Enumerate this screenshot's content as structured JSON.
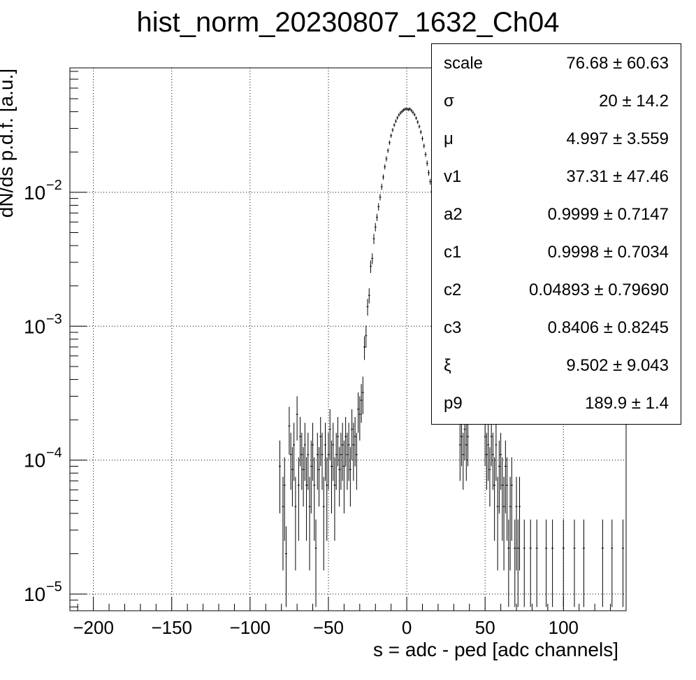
{
  "chart_data": {
    "type": "scatter",
    "title": "hist_norm_20230807_1632_Ch04",
    "xlabel": "s = adc - ped [adc channels]",
    "ylabel": "dN/ds p.d.f. [a.u.]",
    "xlim": [
      -215,
      140
    ],
    "ylim": [
      7.5e-06,
      0.085
    ],
    "yscale": "log",
    "grid": true,
    "x_ticks": [
      "−200",
      "−150",
      "−100",
      "−50",
      "0",
      "50",
      "100"
    ],
    "x_tick_values": [
      -200,
      -150,
      -100,
      -50,
      0,
      50,
      100
    ],
    "y_ticks": [
      {
        "base": "10",
        "exp": "−5",
        "value": 1e-05
      },
      {
        "base": "10",
        "exp": "−4",
        "value": 0.0001
      },
      {
        "base": "10",
        "exp": "−3",
        "value": 0.001
      },
      {
        "base": "10",
        "exp": "−2",
        "value": 0.01
      }
    ],
    "points": [
      {
        "x": -81,
        "y": 9e-05,
        "yerr": 5e-05
      },
      {
        "x": -79,
        "y": 4.5e-05,
        "yerr": 3e-05
      },
      {
        "x": -78,
        "y": 6.5e-05,
        "yerr": 4e-05
      },
      {
        "x": -77,
        "y": 2e-05,
        "yerr": 1.2e-05
      },
      {
        "x": -75,
        "y": 0.00018,
        "yerr": 7e-05
      },
      {
        "x": -74,
        "y": 0.00011,
        "yerr": 5e-05
      },
      {
        "x": -73,
        "y": 8.5e-05,
        "yerr": 4e-05
      },
      {
        "x": -72,
        "y": 0.00013,
        "yerr": 6e-05
      },
      {
        "x": -71,
        "y": 4.5e-05,
        "yerr": 3e-05
      },
      {
        "x": -70,
        "y": 0.00022,
        "yerr": 8e-05
      },
      {
        "x": -69,
        "y": 6.5e-05,
        "yerr": 4e-05
      },
      {
        "x": -68,
        "y": 0.00015,
        "yerr": 6e-05
      },
      {
        "x": -67,
        "y": 0.00011,
        "yerr": 5e-05
      },
      {
        "x": -66,
        "y": 8.5e-05,
        "yerr": 4e-05
      },
      {
        "x": -65,
        "y": 0.00013,
        "yerr": 6e-05
      },
      {
        "x": -64,
        "y": 6.5e-05,
        "yerr": 4e-05
      },
      {
        "x": -63,
        "y": 0.00011,
        "yerr": 5e-05
      },
      {
        "x": -62,
        "y": 4.5e-05,
        "yerr": 3e-05
      },
      {
        "x": -61,
        "y": 9e-05,
        "yerr": 5e-05
      },
      {
        "x": -60,
        "y": 0.00013,
        "yerr": 6e-05
      },
      {
        "x": -59,
        "y": 6.5e-05,
        "yerr": 4e-05
      },
      {
        "x": -58,
        "y": 2.2e-05,
        "yerr": 1.4e-05
      },
      {
        "x": -57,
        "y": 0.00011,
        "yerr": 5e-05
      },
      {
        "x": -56,
        "y": 8.5e-05,
        "yerr": 4e-05
      },
      {
        "x": -55,
        "y": 0.00015,
        "yerr": 6e-05
      },
      {
        "x": -54,
        "y": 0.00011,
        "yerr": 5e-05
      },
      {
        "x": -53,
        "y": 4.5e-05,
        "yerr": 3e-05
      },
      {
        "x": -52,
        "y": 0.00013,
        "yerr": 6e-05
      },
      {
        "x": -51,
        "y": 6.5e-05,
        "yerr": 4e-05
      },
      {
        "x": -50,
        "y": 0.00011,
        "yerr": 5e-05
      },
      {
        "x": -49,
        "y": 0.00017,
        "yerr": 7e-05
      },
      {
        "x": -48,
        "y": 9e-05,
        "yerr": 5e-05
      },
      {
        "x": -47,
        "y": 0.00013,
        "yerr": 6e-05
      },
      {
        "x": -46,
        "y": 6.5e-05,
        "yerr": 4e-05
      },
      {
        "x": -45,
        "y": 0.00011,
        "yerr": 5e-05
      },
      {
        "x": -44,
        "y": 0.00015,
        "yerr": 6e-05
      },
      {
        "x": -43,
        "y": 8.5e-05,
        "yerr": 4e-05
      },
      {
        "x": -42,
        "y": 0.00011,
        "yerr": 5e-05
      },
      {
        "x": -41,
        "y": 0.00013,
        "yerr": 6e-05
      },
      {
        "x": -40,
        "y": 9e-05,
        "yerr": 5e-05
      },
      {
        "x": -39,
        "y": 0.00015,
        "yerr": 6e-05
      },
      {
        "x": -38,
        "y": 0.00011,
        "yerr": 5e-05
      },
      {
        "x": -37,
        "y": 0.00013,
        "yerr": 6e-05
      },
      {
        "x": -36,
        "y": 8.5e-05,
        "yerr": 4e-05
      },
      {
        "x": -35,
        "y": 0.00017,
        "yerr": 7e-05
      },
      {
        "x": -34,
        "y": 0.00013,
        "yerr": 6e-05
      },
      {
        "x": -33,
        "y": 0.00015,
        "yerr": 6e-05
      },
      {
        "x": -32,
        "y": 0.00011,
        "yerr": 5e-05
      },
      {
        "x": -31,
        "y": 0.00024,
        "yerr": 8e-05
      },
      {
        "x": -30,
        "y": 0.00022,
        "yerr": 8e-05
      },
      {
        "x": -29,
        "y": 0.00028,
        "yerr": 9e-05
      },
      {
        "x": -28,
        "y": 0.00032,
        "yerr": 0.0001
      },
      {
        "x": -27,
        "y": 0.0007,
        "yerr": 0.00014
      },
      {
        "x": -26,
        "y": 0.00085,
        "yerr": 0.00016
      },
      {
        "x": -25,
        "y": 0.0014,
        "yerr": 0.0002
      },
      {
        "x": -24,
        "y": 0.0017,
        "yerr": 0.00022
      },
      {
        "x": -23,
        "y": 0.0028,
        "yerr": 0.0003
      },
      {
        "x": -22,
        "y": 0.0032,
        "yerr": 0.0003
      },
      {
        "x": -21,
        "y": 0.0045,
        "yerr": 0.0004
      },
      {
        "x": -20,
        "y": 0.0055,
        "yerr": 0.0004
      },
      {
        "x": -19,
        "y": 0.0065,
        "yerr": 0.0004
      },
      {
        "x": -18,
        "y": 0.0078,
        "yerr": 0.0005
      },
      {
        "x": -17,
        "y": 0.0092,
        "yerr": 0.0005
      },
      {
        "x": -16,
        "y": 0.011,
        "yerr": 0.0006
      },
      {
        "x": -15,
        "y": 0.013,
        "yerr": 0.0006
      },
      {
        "x": -14,
        "y": 0.0155,
        "yerr": 0.0007
      },
      {
        "x": -13,
        "y": 0.0178,
        "yerr": 0.0008
      },
      {
        "x": -12,
        "y": 0.0205,
        "yerr": 0.0008
      },
      {
        "x": -11,
        "y": 0.0235,
        "yerr": 0.0009
      },
      {
        "x": -10,
        "y": 0.0265,
        "yerr": 0.001
      },
      {
        "x": -9,
        "y": 0.0292,
        "yerr": 0.001
      },
      {
        "x": -8,
        "y": 0.0318,
        "yerr": 0.001
      },
      {
        "x": -7,
        "y": 0.034,
        "yerr": 0.0011
      },
      {
        "x": -6,
        "y": 0.036,
        "yerr": 0.0011
      },
      {
        "x": -5,
        "y": 0.0378,
        "yerr": 0.0011
      },
      {
        "x": -4,
        "y": 0.0392,
        "yerr": 0.0012
      },
      {
        "x": -3,
        "y": 0.0402,
        "yerr": 0.0012
      },
      {
        "x": -2,
        "y": 0.0412,
        "yerr": 0.0012
      },
      {
        "x": -1,
        "y": 0.0418,
        "yerr": 0.0012
      },
      {
        "x": 0,
        "y": 0.042,
        "yerr": 0.0012
      },
      {
        "x": 1,
        "y": 0.0415,
        "yerr": 0.0012
      },
      {
        "x": 2,
        "y": 0.0419,
        "yerr": 0.0012
      },
      {
        "x": 3,
        "y": 0.0408,
        "yerr": 0.0012
      },
      {
        "x": 4,
        "y": 0.0395,
        "yerr": 0.0012
      },
      {
        "x": 5,
        "y": 0.038,
        "yerr": 0.0011
      },
      {
        "x": 6,
        "y": 0.0358,
        "yerr": 0.0011
      },
      {
        "x": 7,
        "y": 0.0335,
        "yerr": 0.0011
      },
      {
        "x": 8,
        "y": 0.031,
        "yerr": 0.001
      },
      {
        "x": 9,
        "y": 0.0282,
        "yerr": 0.001
      },
      {
        "x": 10,
        "y": 0.0252,
        "yerr": 0.001
      },
      {
        "x": 11,
        "y": 0.0222,
        "yerr": 0.0009
      },
      {
        "x": 12,
        "y": 0.0192,
        "yerr": 0.0008
      },
      {
        "x": 13,
        "y": 0.0165,
        "yerr": 0.0008
      },
      {
        "x": 14,
        "y": 0.014,
        "yerr": 0.0007
      },
      {
        "x": 15,
        "y": 0.012,
        "yerr": 0.0006
      },
      {
        "x": 16,
        "y": 0.0102,
        "yerr": 0.0006
      },
      {
        "x": 34,
        "y": 0.00013,
        "yerr": 6e-05
      },
      {
        "x": 35,
        "y": 0.00015,
        "yerr": 6e-05
      },
      {
        "x": 36,
        "y": 0.00011,
        "yerr": 5e-05
      },
      {
        "x": 37,
        "y": 0.00017,
        "yerr": 7e-05
      },
      {
        "x": 38,
        "y": 0.00013,
        "yerr": 6e-05
      },
      {
        "x": 39,
        "y": 0.00015,
        "yerr": 6e-05
      },
      {
        "x": 50,
        "y": 0.00015,
        "yerr": 6e-05
      },
      {
        "x": 51,
        "y": 0.00011,
        "yerr": 5e-05
      },
      {
        "x": 52,
        "y": 0.00013,
        "yerr": 6e-05
      },
      {
        "x": 53,
        "y": 8.5e-05,
        "yerr": 4e-05
      },
      {
        "x": 54,
        "y": 0.00015,
        "yerr": 6e-05
      },
      {
        "x": 55,
        "y": 0.00011,
        "yerr": 5e-05
      },
      {
        "x": 56,
        "y": 6.5e-05,
        "yerr": 4e-05
      },
      {
        "x": 57,
        "y": 0.00013,
        "yerr": 6e-05
      },
      {
        "x": 58,
        "y": 4.5e-05,
        "yerr": 3e-05
      },
      {
        "x": 59,
        "y": 9e-05,
        "yerr": 5e-05
      },
      {
        "x": 60,
        "y": 0.00011,
        "yerr": 5e-05
      },
      {
        "x": 61,
        "y": 6.5e-05,
        "yerr": 4e-05
      },
      {
        "x": 62,
        "y": 4.5e-05,
        "yerr": 3e-05
      },
      {
        "x": 63,
        "y": 9e-05,
        "yerr": 5e-05
      },
      {
        "x": 64,
        "y": 6.5e-05,
        "yerr": 4e-05
      },
      {
        "x": 65,
        "y": 2.2e-05,
        "yerr": 1.4e-05
      },
      {
        "x": 66,
        "y": 4.5e-05,
        "yerr": 3e-05
      },
      {
        "x": 67,
        "y": 6.5e-05,
        "yerr": 4e-05
      },
      {
        "x": 69,
        "y": 2.2e-05,
        "yerr": 1.4e-05
      },
      {
        "x": 70,
        "y": 4.5e-05,
        "yerr": 3e-05
      },
      {
        "x": 71,
        "y": 2.2e-05,
        "yerr": 1.4e-05
      },
      {
        "x": 72,
        "y": 4.5e-05,
        "yerr": 3e-05
      },
      {
        "x": 75,
        "y": 2.2e-05,
        "yerr": 1.4e-05
      },
      {
        "x": 79,
        "y": 2.2e-05,
        "yerr": 1.4e-05
      },
      {
        "x": 83,
        "y": 2.2e-05,
        "yerr": 1.4e-05
      },
      {
        "x": 89,
        "y": 2.2e-05,
        "yerr": 1.4e-05
      },
      {
        "x": 93,
        "y": 2.2e-05,
        "yerr": 1.4e-05
      },
      {
        "x": 100,
        "y": 2.2e-05,
        "yerr": 1.4e-05
      },
      {
        "x": 107,
        "y": 2.2e-05,
        "yerr": 1.4e-05
      },
      {
        "x": 113,
        "y": 2.2e-05,
        "yerr": 1.4e-05
      },
      {
        "x": 125,
        "y": 2.2e-05,
        "yerr": 1.4e-05
      },
      {
        "x": 131,
        "y": 2.2e-05,
        "yerr": 1.4e-05
      },
      {
        "x": 138,
        "y": 2.2e-05,
        "yerr": 1.4e-05
      }
    ]
  },
  "stats": [
    {
      "name": "scale",
      "value": "76.68 ± 60.63"
    },
    {
      "name": "σ",
      "value": "20 ± 14.2"
    },
    {
      "name": "μ",
      "value": "4.997 ± 3.559"
    },
    {
      "name": "v1",
      "value": "37.31 ± 47.46"
    },
    {
      "name": "a2",
      "value": "0.9999 ± 0.7147"
    },
    {
      "name": "c1",
      "value": "0.9998 ± 0.7034"
    },
    {
      "name": "c2",
      "value": "0.04893 ± 0.79690"
    },
    {
      "name": "c3",
      "value": "0.8406 ± 0.8245"
    },
    {
      "name": "ξ",
      "value": "9.502 ± 9.043"
    },
    {
      "name": "p9",
      "value": "189.9 ± 1.4"
    }
  ]
}
